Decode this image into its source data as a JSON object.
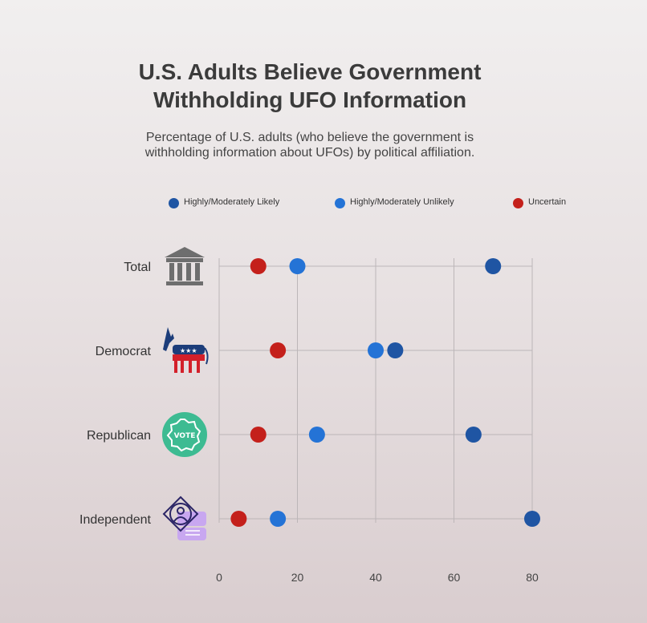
{
  "chart_data": {
    "type": "scatter",
    "title": [
      "U.S. Adults Believe Government",
      "Withholding UFO Information"
    ],
    "subtitle": [
      "Percentage of U.S. adults (who believe the government is",
      "withholding information about UFOs) by political affiliation."
    ],
    "categories": [
      "Total",
      "Democrat",
      "Republican",
      "Independent"
    ],
    "icons": [
      "institution-icon",
      "donkey-icon",
      "vote-badge-icon",
      "person-target-icon"
    ],
    "series": [
      {
        "name": "Highly/Moderately Likely",
        "color": "#1f55a3",
        "values": [
          70,
          45,
          65,
          80
        ]
      },
      {
        "name": "Highly/Moderately Unlikely",
        "color": "#2473d6",
        "values": [
          20,
          40,
          25,
          15
        ]
      },
      {
        "name": "Uncertain",
        "color": "#c4201b",
        "values": [
          10,
          15,
          10,
          5
        ]
      }
    ],
    "xticks": [
      0,
      20,
      40,
      60,
      80
    ],
    "xlim": [
      0,
      80
    ],
    "grid": true,
    "legend": "top"
  }
}
